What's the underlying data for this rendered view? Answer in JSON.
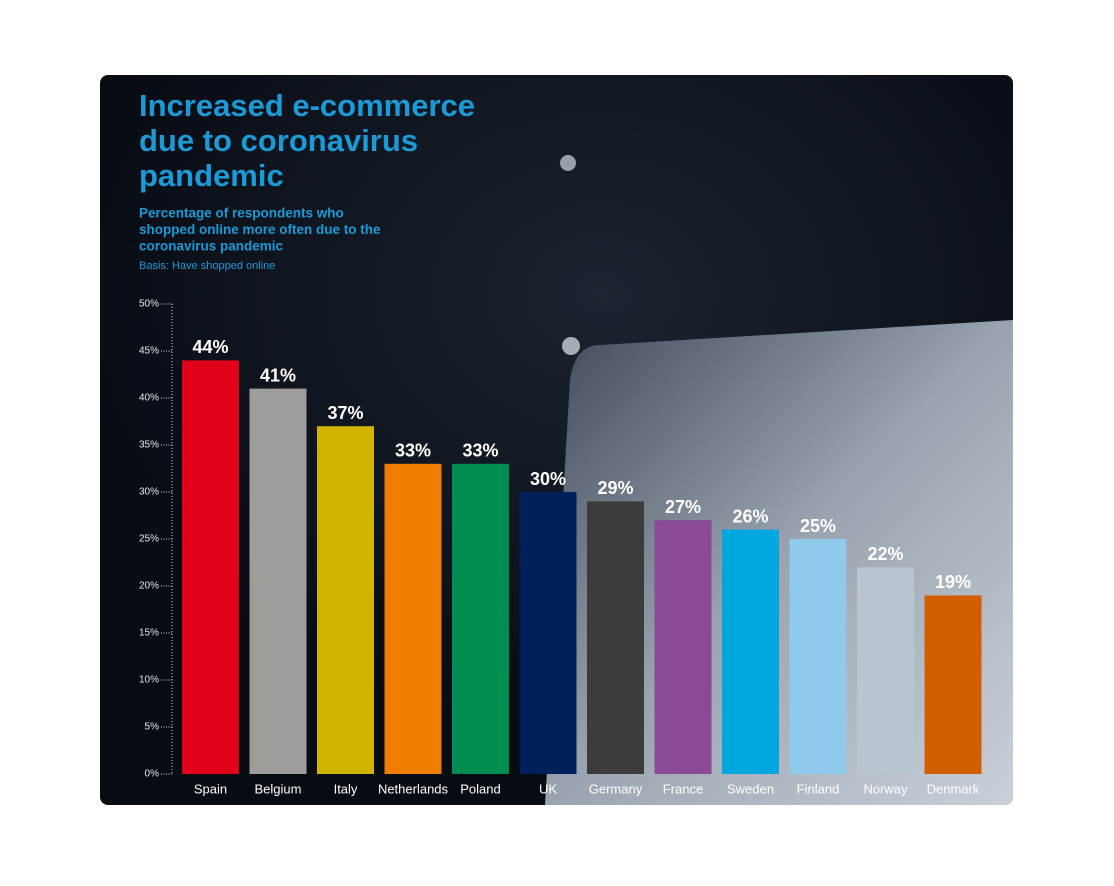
{
  "chart_data": {
    "type": "bar",
    "title": [
      "Increased e-commerce",
      "due to coronavirus",
      "pandemic"
    ],
    "subtitle": [
      "Percentage of respondents who",
      "shopped online more often due to the",
      "coronavirus pandemic"
    ],
    "note": "Basis: Have shopped online",
    "categories": [
      "Spain",
      "Belgium",
      "Italy",
      "Netherlands",
      "Poland",
      "UK",
      "Germany",
      "France",
      "Sweden",
      "Finland",
      "Norway",
      "Denmark"
    ],
    "values": [
      44,
      41,
      37,
      33,
      33,
      30,
      29,
      27,
      26,
      25,
      22,
      19
    ],
    "value_labels": [
      "44%",
      "41%",
      "37%",
      "33%",
      "33%",
      "30%",
      "29%",
      "27%",
      "26%",
      "25%",
      "22%",
      "19%"
    ],
    "colors": [
      "#e2001a",
      "#9d9d9c",
      "#d1b400",
      "#ef7d00",
      "#008d4f",
      "#00205b",
      "#3c3c3b",
      "#8a4a96",
      "#00a6de",
      "#8fc9ec",
      "#b8c4cf",
      "#d35e00"
    ],
    "ylim": [
      0,
      50
    ],
    "yticks": [
      {
        "value": 0,
        "label": "0%"
      },
      {
        "value": 5,
        "label": "5%"
      },
      {
        "value": 10,
        "label": "10%"
      },
      {
        "value": 15,
        "label": "15%"
      },
      {
        "value": 20,
        "label": "20%"
      },
      {
        "value": 25,
        "label": "25%"
      },
      {
        "value": 30,
        "label": "30%"
      },
      {
        "value": 35,
        "label": "35%"
      },
      {
        "value": 40,
        "label": "40%"
      },
      {
        "value": 45,
        "label": "45%"
      },
      {
        "value": 50,
        "label": "50%"
      }
    ],
    "grid": false
  }
}
